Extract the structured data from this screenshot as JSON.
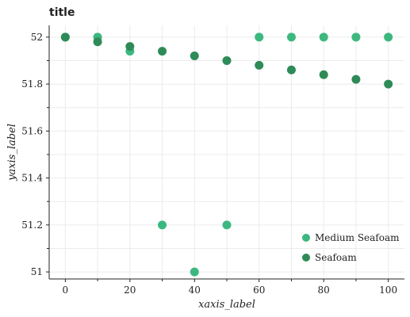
{
  "chart_data": {
    "type": "scatter",
    "title": "title",
    "xlabel": "xaxis_label",
    "ylabel": "yaxis_label",
    "xlim": [
      -5,
      105
    ],
    "ylim": [
      50.97,
      52.05
    ],
    "x_ticks": [
      0,
      20,
      40,
      60,
      80,
      100
    ],
    "y_ticks": [
      51,
      51.2,
      51.4,
      51.6,
      51.8,
      52
    ],
    "grid": true,
    "legend_position": "bottom-right",
    "series": [
      {
        "name": "Medium Seafoam",
        "color": "#3cb87e",
        "x": [
          0,
          10,
          20,
          30,
          40,
          50,
          60,
          70,
          80,
          90,
          100
        ],
        "y": [
          52,
          52,
          51.94,
          51.2,
          51.0,
          51.2,
          52,
          52,
          52,
          52,
          52
        ]
      },
      {
        "name": "Seafoam",
        "color": "#2e8b57",
        "x": [
          0,
          10,
          20,
          30,
          40,
          50,
          60,
          70,
          80,
          90,
          100
        ],
        "y": [
          52,
          51.98,
          51.96,
          51.94,
          51.92,
          51.9,
          51.88,
          51.86,
          51.84,
          51.82,
          51.8
        ]
      }
    ]
  }
}
